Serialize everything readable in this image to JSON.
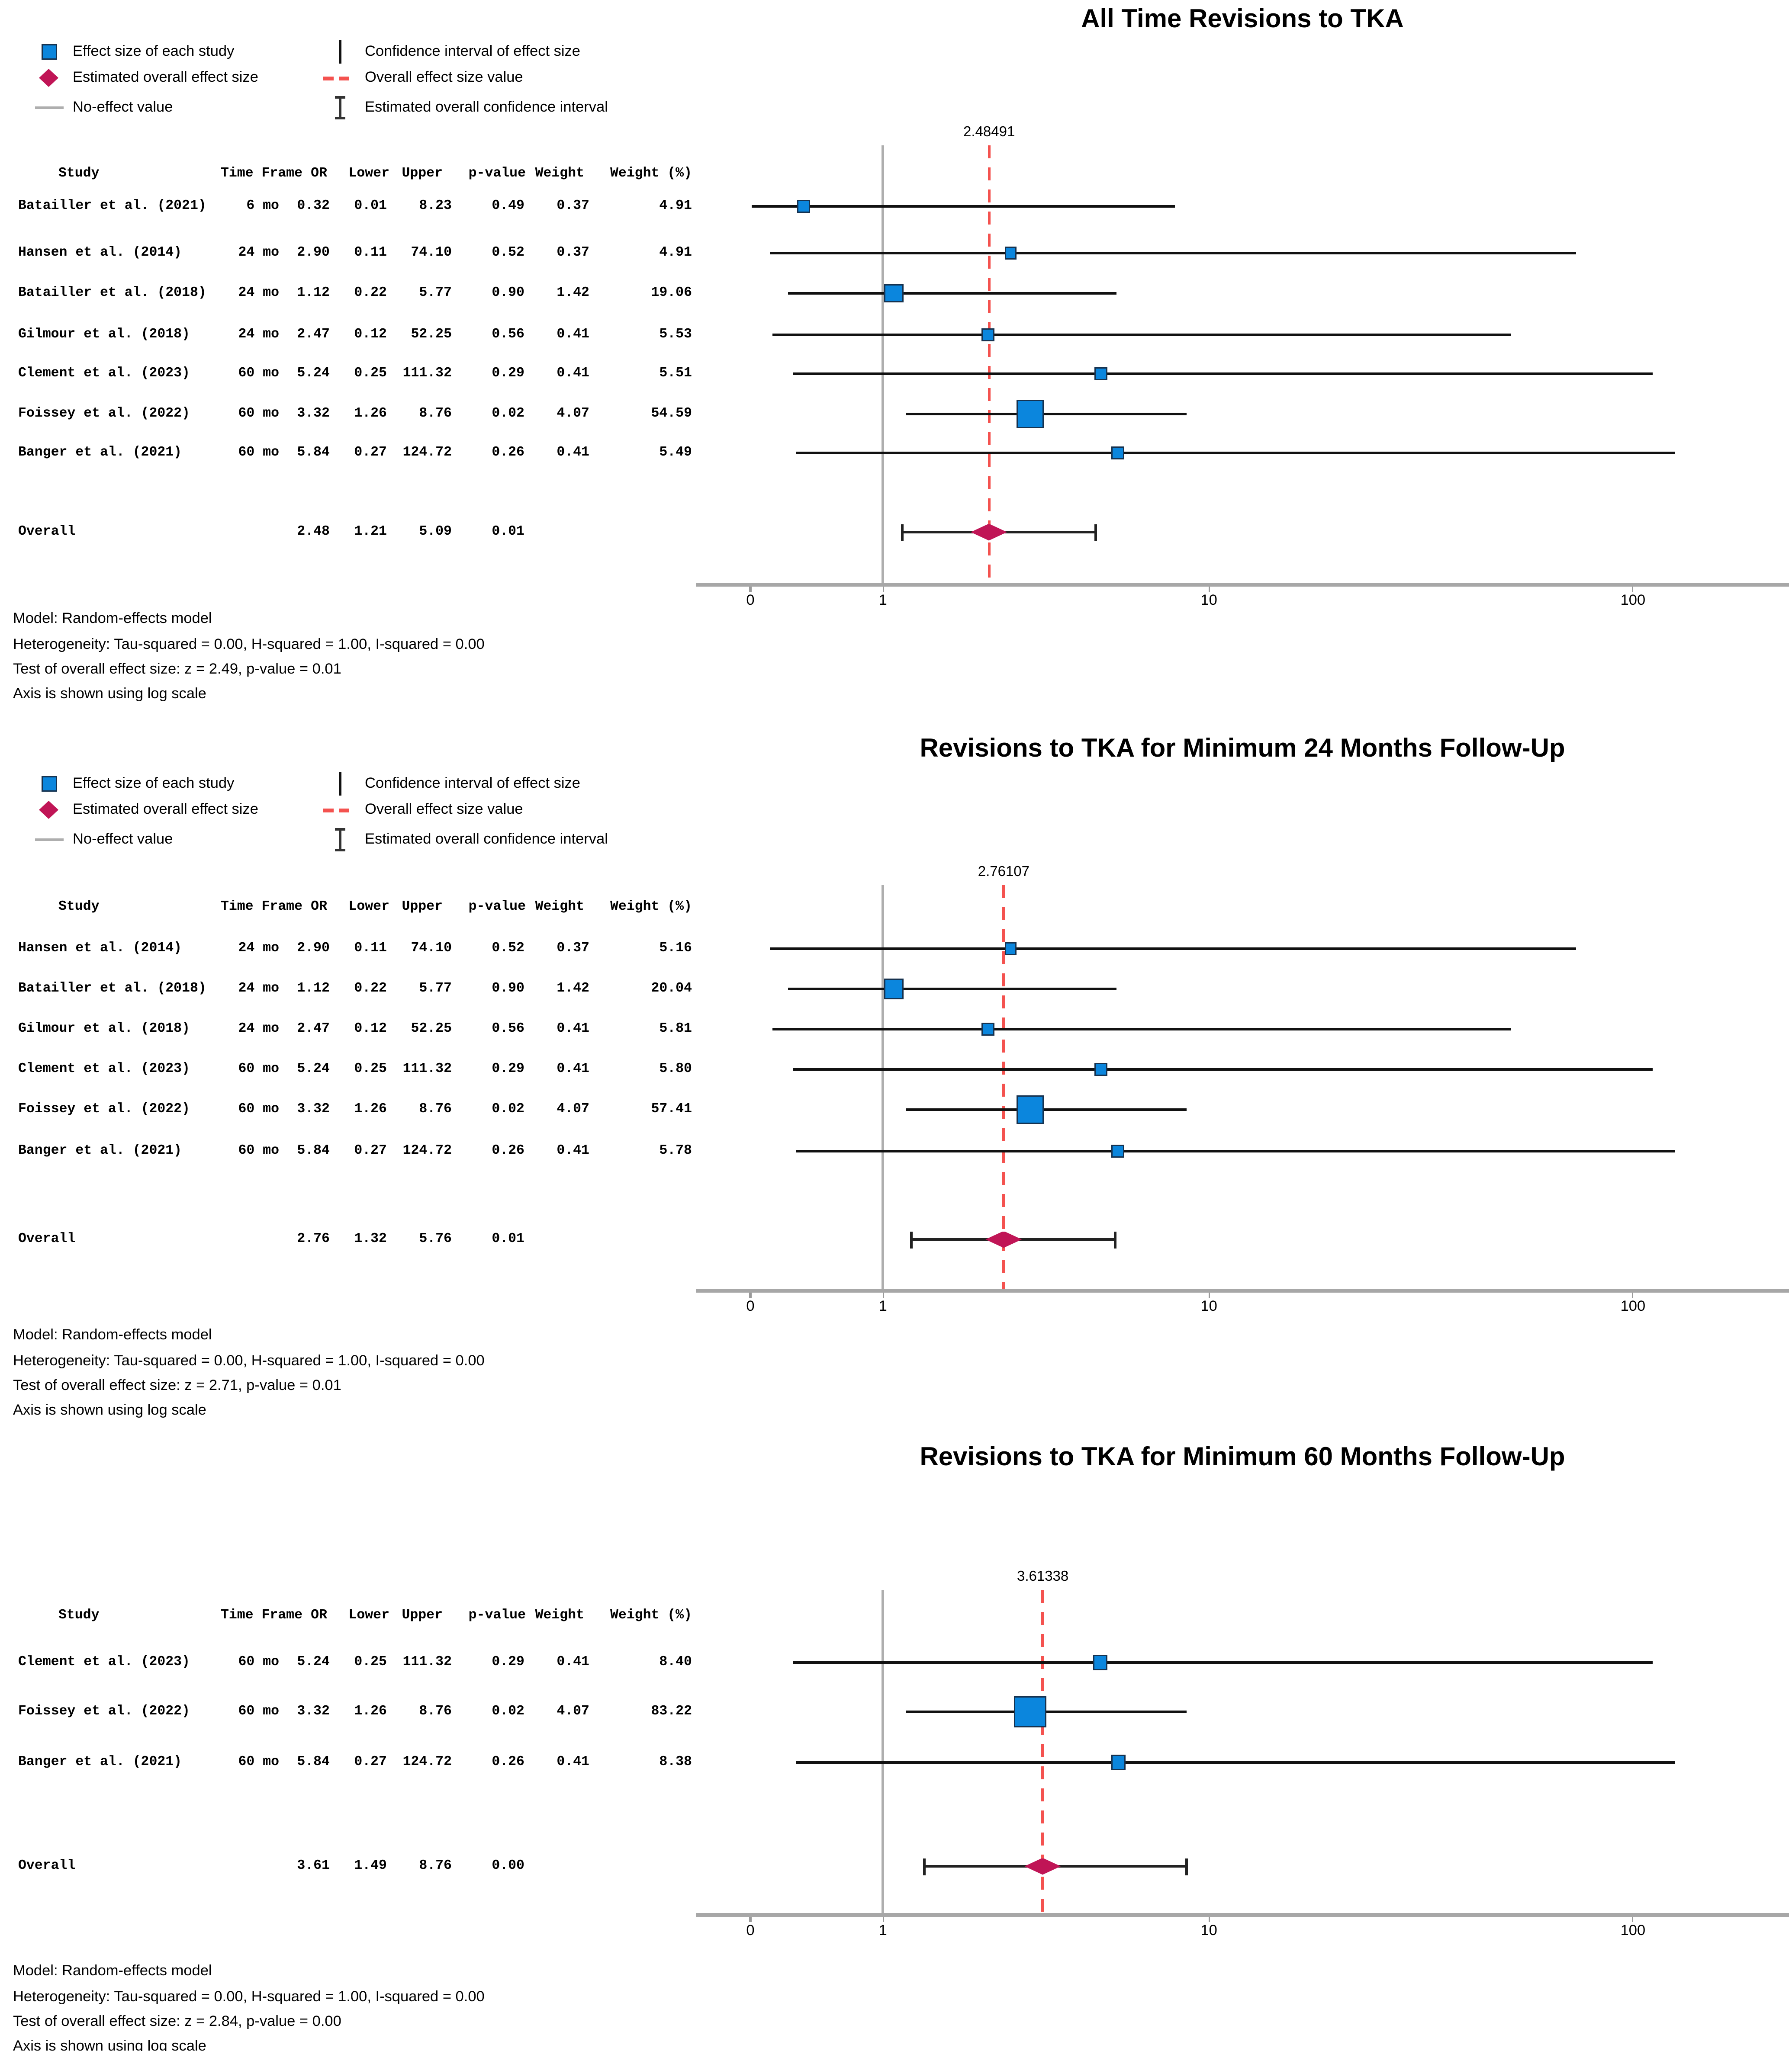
{
  "figure": {
    "type": "forest-plot-meta-analysis"
  },
  "colors": {
    "square_fill": "#0b86dd",
    "square_border": "#16324f",
    "diamond": "#c01556",
    "dash_red": "#f4524f",
    "gray_line": "#aeaeae",
    "ci_black": "#111111",
    "axis_gray": "#a7a7a7"
  },
  "legend": {
    "left": [
      {
        "icon": "effect-size-square-icon",
        "label": "Effect size of each study"
      },
      {
        "icon": "overall-diamond-icon",
        "label": "Estimated overall effect size"
      },
      {
        "icon": "no-effect-line-icon",
        "label": "No-effect value"
      }
    ],
    "right": [
      {
        "icon": "ci-line-icon",
        "label": "Confidence interval of effect size"
      },
      {
        "icon": "overall-dash-icon",
        "label": "Overall effect size value"
      },
      {
        "icon": "overall-ci-ibeam-icon",
        "label": "Estimated overall confidence interval"
      }
    ]
  },
  "table_headers": {
    "study": "Study",
    "time_frame": "Time Frame",
    "or": "OR",
    "lower": "Lower",
    "upper": "Upper",
    "p_value": "p-value",
    "weight": "Weight",
    "weight_pct": "Weight (%)"
  },
  "axis": {
    "ticks": [
      "0",
      "1",
      "10",
      "100"
    ],
    "scale_note": "log scale"
  },
  "chart_data": [
    {
      "type": "forest",
      "title": "All Time Revisions to TKA",
      "overall_line_label": "2.48491",
      "has_legend": true,
      "studies": [
        {
          "study": "Batailler et al. (2021)",
          "time_frame": "6 mo",
          "or": "0.32",
          "lower": "0.01",
          "upper": "8.23",
          "p_value": "0.49",
          "weight": "0.37",
          "weight_pct": "4.91"
        },
        {
          "study": "Hansen et al. (2014)",
          "time_frame": "24 mo",
          "or": "2.90",
          "lower": "0.11",
          "upper": "74.10",
          "p_value": "0.52",
          "weight": "0.37",
          "weight_pct": "4.91"
        },
        {
          "study": "Batailler et al. (2018)",
          "time_frame": "24 mo",
          "or": "1.12",
          "lower": "0.22",
          "upper": "5.77",
          "p_value": "0.90",
          "weight": "1.42",
          "weight_pct": "19.06"
        },
        {
          "study": "Gilmour et al. (2018)",
          "time_frame": "24 mo",
          "or": "2.47",
          "lower": "0.12",
          "upper": "52.25",
          "p_value": "0.56",
          "weight": "0.41",
          "weight_pct": "5.53"
        },
        {
          "study": "Clement et al. (2023)",
          "time_frame": "60 mo",
          "or": "5.24",
          "lower": "0.25",
          "upper": "111.32",
          "p_value": "0.29",
          "weight": "0.41",
          "weight_pct": "5.51"
        },
        {
          "study": "Foissey et al. (2022)",
          "time_frame": "60 mo",
          "or": "3.32",
          "lower": "1.26",
          "upper": "8.76",
          "p_value": "0.02",
          "weight": "4.07",
          "weight_pct": "54.59"
        },
        {
          "study": "Banger et al. (2021)",
          "time_frame": "60 mo",
          "or": "5.84",
          "lower": "0.27",
          "upper": "124.72",
          "p_value": "0.26",
          "weight": "0.41",
          "weight_pct": "5.49"
        }
      ],
      "overall": {
        "label": "Overall",
        "or": "2.48",
        "lower": "1.21",
        "upper": "5.09",
        "p_value": "0.01"
      },
      "notes": [
        "Model: Random-effects model",
        "Heterogeneity: Tau-squared = 0.00, H-squared = 1.00, I-squared = 0.00",
        "Test of overall effect size: z = 2.49, p-value = 0.01",
        "Axis is shown using log scale"
      ]
    },
    {
      "type": "forest",
      "title": "Revisions to TKA for Minimum 24 Months Follow-Up",
      "overall_line_label": "2.76107",
      "has_legend": true,
      "studies": [
        {
          "study": "Hansen et al. (2014)",
          "time_frame": "24 mo",
          "or": "2.90",
          "lower": "0.11",
          "upper": "74.10",
          "p_value": "0.52",
          "weight": "0.37",
          "weight_pct": "5.16"
        },
        {
          "study": "Batailler et al. (2018)",
          "time_frame": "24 mo",
          "or": "1.12",
          "lower": "0.22",
          "upper": "5.77",
          "p_value": "0.90",
          "weight": "1.42",
          "weight_pct": "20.04"
        },
        {
          "study": "Gilmour et al. (2018)",
          "time_frame": "24 mo",
          "or": "2.47",
          "lower": "0.12",
          "upper": "52.25",
          "p_value": "0.56",
          "weight": "0.41",
          "weight_pct": "5.81"
        },
        {
          "study": "Clement et al. (2023)",
          "time_frame": "60 mo",
          "or": "5.24",
          "lower": "0.25",
          "upper": "111.32",
          "p_value": "0.29",
          "weight": "0.41",
          "weight_pct": "5.80"
        },
        {
          "study": "Foissey et al. (2022)",
          "time_frame": "60 mo",
          "or": "3.32",
          "lower": "1.26",
          "upper": "8.76",
          "p_value": "0.02",
          "weight": "4.07",
          "weight_pct": "57.41"
        },
        {
          "study": "Banger et al. (2021)",
          "time_frame": "60 mo",
          "or": "5.84",
          "lower": "0.27",
          "upper": "124.72",
          "p_value": "0.26",
          "weight": "0.41",
          "weight_pct": "5.78"
        }
      ],
      "overall": {
        "label": "Overall",
        "or": "2.76",
        "lower": "1.32",
        "upper": "5.76",
        "p_value": "0.01"
      },
      "notes": [
        "Model: Random-effects model",
        "Heterogeneity: Tau-squared = 0.00, H-squared = 1.00, I-squared = 0.00",
        "Test of overall effect size: z = 2.71, p-value = 0.01",
        "Axis is shown using log scale"
      ]
    },
    {
      "type": "forest",
      "title": "Revisions to TKA for Minimum 60 Months Follow-Up",
      "overall_line_label": "3.61338",
      "has_legend": false,
      "studies": [
        {
          "study": "Clement et al. (2023)",
          "time_frame": "60 mo",
          "or": "5.24",
          "lower": "0.25",
          "upper": "111.32",
          "p_value": "0.29",
          "weight": "0.41",
          "weight_pct": "8.40"
        },
        {
          "study": "Foissey et al. (2022)",
          "time_frame": "60 mo",
          "or": "3.32",
          "lower": "1.26",
          "upper": "8.76",
          "p_value": "0.02",
          "weight": "4.07",
          "weight_pct": "83.22"
        },
        {
          "study": "Banger et al. (2021)",
          "time_frame": "60 mo",
          "or": "5.84",
          "lower": "0.27",
          "upper": "124.72",
          "p_value": "0.26",
          "weight": "0.41",
          "weight_pct": "8.38"
        }
      ],
      "overall": {
        "label": "Overall",
        "or": "3.61",
        "lower": "1.49",
        "upper": "8.76",
        "p_value": "0.00"
      },
      "notes": [
        "Model: Random-effects model",
        "Heterogeneity: Tau-squared = 0.00, H-squared = 1.00, I-squared = 0.00",
        "Test of overall effect size: z = 2.84, p-value = 0.00",
        "Axis is shown using log scale"
      ]
    }
  ]
}
